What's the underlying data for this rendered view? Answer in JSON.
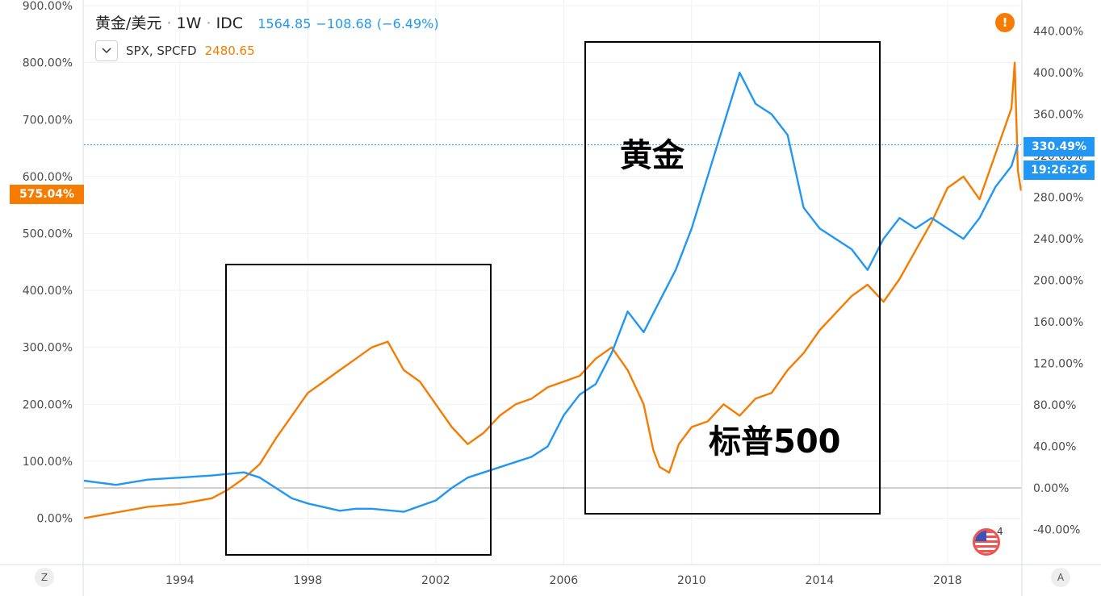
{
  "header": {
    "symbol": "黄金/美元",
    "interval": "1W",
    "exchange": "IDC",
    "dot": "·",
    "last": "1564.85",
    "change": "−108.68",
    "change_pct": "(−6.49%)"
  },
  "legend": {
    "collapse_icon": "chevron-down-icon",
    "compare_symbol": "SPX, SPCFD",
    "compare_value": "2480.65"
  },
  "badges": {
    "spx_pct": "575.04%",
    "gold_pct": "330.49%",
    "countdown": "19:26:26"
  },
  "warning": "!",
  "annotations": {
    "gold": "黄金",
    "spx": "标普500"
  },
  "corners": {
    "left": "Z",
    "right": "A"
  },
  "flag": {
    "icon": "us-flag-icon",
    "count": "4"
  },
  "colors": {
    "gold": "#2196f3",
    "spx": "#f57c00",
    "grid": "#eef1f6"
  },
  "chart_data": {
    "type": "line",
    "x_axis": {
      "ticks": [
        "1994",
        "1998",
        "2002",
        "2006",
        "2010",
        "2014",
        "2018"
      ],
      "range": [
        1991,
        2020.3
      ]
    },
    "y_left": {
      "ticks": [
        "0.00%",
        "100.00%",
        "200.00%",
        "300.00%",
        "400.00%",
        "500.00%",
        "600.00%",
        "700.00%",
        "800.00%",
        "900.00%"
      ],
      "range": [
        -80,
        910
      ]
    },
    "y_right": {
      "ticks": [
        "-40.00%",
        "0.00%",
        "40.00%",
        "80.00%",
        "120.00%",
        "160.00%",
        "200.00%",
        "240.00%",
        "280.00%",
        "320.00%",
        "360.00%",
        "400.00%",
        "440.00%"
      ],
      "range": [
        -73,
        470
      ]
    },
    "grid": true,
    "series": [
      {
        "name": "SPX, SPCFD",
        "axis": "left",
        "color": "#f57c00",
        "points": [
          [
            1991.0,
            0
          ],
          [
            1992.0,
            10
          ],
          [
            1993.0,
            20
          ],
          [
            1994.0,
            25
          ],
          [
            1995.0,
            35
          ],
          [
            1995.5,
            50
          ],
          [
            1996.0,
            70
          ],
          [
            1996.5,
            95
          ],
          [
            1997.0,
            140
          ],
          [
            1997.5,
            180
          ],
          [
            1998.0,
            220
          ],
          [
            1998.5,
            240
          ],
          [
            1999.0,
            260
          ],
          [
            1999.5,
            280
          ],
          [
            2000.0,
            300
          ],
          [
            2000.5,
            310
          ],
          [
            2001.0,
            260
          ],
          [
            2001.5,
            240
          ],
          [
            2002.0,
            200
          ],
          [
            2002.5,
            160
          ],
          [
            2003.0,
            130
          ],
          [
            2003.5,
            150
          ],
          [
            2004.0,
            180
          ],
          [
            2004.5,
            200
          ],
          [
            2005.0,
            210
          ],
          [
            2005.5,
            230
          ],
          [
            2006.0,
            240
          ],
          [
            2006.5,
            250
          ],
          [
            2007.0,
            280
          ],
          [
            2007.5,
            300
          ],
          [
            2008.0,
            260
          ],
          [
            2008.5,
            200
          ],
          [
            2008.8,
            120
          ],
          [
            2009.0,
            90
          ],
          [
            2009.3,
            80
          ],
          [
            2009.6,
            130
          ],
          [
            2010.0,
            160
          ],
          [
            2010.5,
            170
          ],
          [
            2011.0,
            200
          ],
          [
            2011.5,
            180
          ],
          [
            2012.0,
            210
          ],
          [
            2012.5,
            220
          ],
          [
            2013.0,
            260
          ],
          [
            2013.5,
            290
          ],
          [
            2014.0,
            330
          ],
          [
            2014.5,
            360
          ],
          [
            2015.0,
            390
          ],
          [
            2015.5,
            410
          ],
          [
            2016.0,
            380
          ],
          [
            2016.5,
            420
          ],
          [
            2017.0,
            470
          ],
          [
            2017.5,
            520
          ],
          [
            2018.0,
            580
          ],
          [
            2018.5,
            600
          ],
          [
            2019.0,
            560
          ],
          [
            2019.5,
            640
          ],
          [
            2020.0,
            720
          ],
          [
            2020.1,
            800
          ],
          [
            2020.2,
            610
          ],
          [
            2020.3,
            575.04
          ]
        ]
      },
      {
        "name": "黄金/美元",
        "axis": "right",
        "color": "#2196f3",
        "points": [
          [
            1991.0,
            7
          ],
          [
            1992.0,
            3
          ],
          [
            1993.0,
            8
          ],
          [
            1994.0,
            10
          ],
          [
            1995.0,
            12
          ],
          [
            1996.0,
            15
          ],
          [
            1996.5,
            10
          ],
          [
            1997.0,
            0
          ],
          [
            1997.5,
            -10
          ],
          [
            1998.0,
            -15
          ],
          [
            1999.0,
            -22
          ],
          [
            1999.5,
            -20
          ],
          [
            2000.0,
            -20
          ],
          [
            2001.0,
            -23
          ],
          [
            2002.0,
            -12
          ],
          [
            2002.5,
            0
          ],
          [
            2003.0,
            10
          ],
          [
            2004.0,
            20
          ],
          [
            2004.5,
            25
          ],
          [
            2005.0,
            30
          ],
          [
            2005.5,
            40
          ],
          [
            2006.0,
            70
          ],
          [
            2006.5,
            90
          ],
          [
            2007.0,
            100
          ],
          [
            2007.5,
            130
          ],
          [
            2008.0,
            170
          ],
          [
            2008.5,
            150
          ],
          [
            2009.0,
            180
          ],
          [
            2009.5,
            210
          ],
          [
            2010.0,
            250
          ],
          [
            2010.5,
            300
          ],
          [
            2011.0,
            350
          ],
          [
            2011.5,
            400
          ],
          [
            2012.0,
            370
          ],
          [
            2012.5,
            360
          ],
          [
            2013.0,
            340
          ],
          [
            2013.5,
            270
          ],
          [
            2014.0,
            250
          ],
          [
            2014.5,
            240
          ],
          [
            2015.0,
            230
          ],
          [
            2015.5,
            210
          ],
          [
            2016.0,
            240
          ],
          [
            2016.5,
            260
          ],
          [
            2017.0,
            250
          ],
          [
            2017.5,
            260
          ],
          [
            2018.0,
            250
          ],
          [
            2018.5,
            240
          ],
          [
            2019.0,
            260
          ],
          [
            2019.5,
            290
          ],
          [
            2020.0,
            310
          ],
          [
            2020.2,
            330.49
          ]
        ]
      }
    ]
  }
}
